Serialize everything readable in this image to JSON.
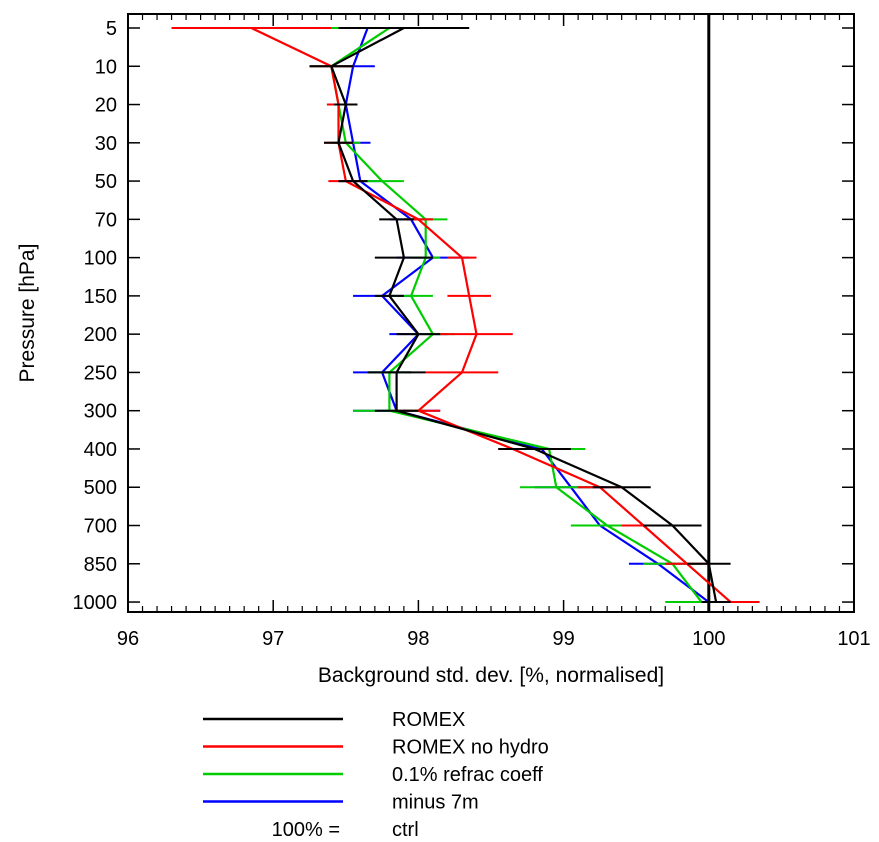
{
  "chart_data": {
    "type": "line",
    "title": "",
    "xlabel": "Background std. dev. [%, normalised]",
    "ylabel": "Pressure [hPa]",
    "xlim": [
      96,
      101
    ],
    "xticks": [
      "96",
      "97",
      "98",
      "99",
      "100",
      "101"
    ],
    "y_categories": [
      "5",
      "10",
      "20",
      "30",
      "50",
      "70",
      "100",
      "150",
      "200",
      "250",
      "300",
      "400",
      "500",
      "700",
      "850",
      "1000"
    ],
    "reference_x": 100,
    "legend_placement": "below",
    "reference_label": "100% =",
    "reference_name": "ctrl",
    "series": [
      {
        "name": "ROMEX",
        "color": "#000000",
        "x": [
          97.9,
          97.4,
          97.5,
          97.45,
          97.55,
          97.85,
          97.9,
          97.8,
          98.0,
          97.85,
          97.85,
          98.8,
          99.4,
          99.75,
          100.0,
          100.05
        ],
        "err": [
          0.45,
          0.15,
          0.08,
          0.1,
          0.1,
          0.12,
          0.2,
          0.1,
          0.15,
          0.2,
          0.15,
          0.25,
          0.2,
          0.2,
          0.15,
          0.1
        ]
      },
      {
        "name": "ROMEX no hydro",
        "color": "#ff0000",
        "x": [
          96.85,
          97.4,
          97.45,
          97.45,
          97.5,
          98.0,
          98.3,
          98.35,
          98.4,
          98.3,
          98.0,
          98.65,
          99.25,
          99.55,
          99.85,
          100.15
        ],
        "err": [
          0.55,
          0.15,
          0.08,
          0.1,
          0.12,
          0.1,
          0.1,
          0.15,
          0.25,
          0.25,
          0.15,
          0.1,
          0.15,
          0.15,
          0.15,
          0.2
        ]
      },
      {
        "name": "0.1% refrac coeff",
        "color": "#00cc00",
        "x": [
          97.8,
          97.4,
          97.45,
          97.5,
          97.75,
          98.05,
          98.05,
          97.95,
          98.1,
          97.8,
          97.8,
          98.9,
          98.95,
          99.3,
          99.75,
          99.95
        ],
        "err": [
          0.5,
          0.15,
          0.08,
          0.1,
          0.15,
          0.15,
          0.1,
          0.15,
          0.15,
          0.15,
          0.25,
          0.25,
          0.25,
          0.25,
          0.2,
          0.25
        ]
      },
      {
        "name": "minus 7m",
        "color": "#0000ff",
        "x": [
          97.65,
          97.55,
          97.5,
          97.55,
          97.6,
          97.95,
          98.1,
          97.75,
          98.0,
          97.75,
          97.85,
          98.85,
          99.05,
          99.25,
          99.65,
          100.0
        ],
        "err": [
          0.45,
          0.15,
          0.08,
          0.12,
          0.15,
          0.15,
          0.25,
          0.2,
          0.2,
          0.2,
          0.3,
          0.25,
          0.25,
          0.15,
          0.2,
          0.2
        ]
      }
    ]
  }
}
